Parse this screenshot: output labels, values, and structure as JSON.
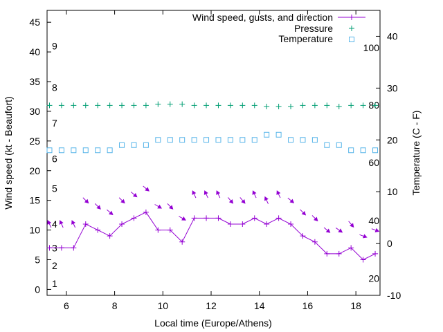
{
  "chart_data": {
    "type": "line",
    "xlabel": "Local time (Europe/Athens)",
    "ylabel": "Wind speed (kt - Beaufort)",
    "y2label": "Temperature (C - F)",
    "xlim": [
      5.2,
      19.0
    ],
    "ylim": [
      -1,
      47
    ],
    "y2lim": [
      -10,
      45
    ],
    "x_ticks": [
      6,
      8,
      10,
      12,
      14,
      16,
      18
    ],
    "y_ticks": [
      0,
      5,
      10,
      15,
      20,
      25,
      30,
      35,
      40,
      45
    ],
    "y2_ticks": [
      -10,
      0,
      10,
      20,
      30,
      40
    ],
    "beaufort_labels": [
      {
        "label": "1",
        "kt": 1
      },
      {
        "label": "2",
        "kt": 4
      },
      {
        "label": "3",
        "kt": 7
      },
      {
        "label": "4",
        "kt": 11
      },
      {
        "label": "5",
        "kt": 17
      },
      {
        "label": "6",
        "kt": 22
      },
      {
        "label": "7",
        "kt": 28
      },
      {
        "label": "8",
        "kt": 34
      },
      {
        "label": "9",
        "kt": 41
      }
    ],
    "fahrenheit_labels": [
      {
        "label": "20",
        "celsius": -6.7
      },
      {
        "label": "40",
        "celsius": 4.4
      },
      {
        "label": "60",
        "celsius": 15.6
      },
      {
        "label": "80",
        "celsius": 26.7
      },
      {
        "label": "100",
        "celsius": 37.8
      }
    ],
    "x": [
      5.3,
      5.8,
      6.3,
      6.8,
      7.3,
      7.8,
      8.3,
      8.8,
      9.3,
      9.8,
      10.3,
      10.8,
      11.3,
      11.8,
      12.3,
      12.8,
      13.3,
      13.8,
      14.3,
      14.8,
      15.3,
      15.8,
      16.3,
      16.8,
      17.3,
      17.8,
      18.3,
      18.8
    ],
    "series": [
      {
        "name": "Wind speed, gusts, and direction",
        "color": "#9400d3",
        "marker": "plus-line",
        "values": [
          7,
          7,
          7,
          11,
          10,
          9,
          11,
          12,
          13,
          10,
          10,
          8,
          12,
          12,
          12,
          11,
          11,
          12,
          11,
          12,
          11,
          9,
          8,
          6,
          6,
          7,
          5,
          6
        ],
        "gust_values": [
          11,
          11,
          11,
          15,
          14,
          13,
          15,
          16,
          17,
          14,
          14,
          12,
          16,
          16,
          16,
          15,
          15,
          16,
          15,
          16,
          15,
          13,
          12,
          10,
          10,
          11,
          9,
          10
        ],
        "direction_deg": [
          115,
          115,
          115,
          315,
          315,
          320,
          315,
          320,
          320,
          330,
          315,
          330,
          115,
          115,
          115,
          310,
          310,
          115,
          115,
          115,
          320,
          315,
          315,
          320,
          325,
          310,
          340,
          340
        ]
      },
      {
        "name": "Pressure",
        "color": "#009e73",
        "marker": "plus",
        "axis": "y1",
        "values": [
          31,
          31,
          31,
          31,
          31,
          31,
          31,
          31,
          31,
          31.2,
          31.2,
          31.2,
          31,
          31,
          31,
          31,
          31,
          31,
          30.8,
          30.8,
          30.8,
          31,
          31,
          31,
          30.8,
          31,
          31,
          31
        ]
      },
      {
        "name": "Temperature",
        "color": "#56b4e9",
        "marker": "square",
        "axis": "y2",
        "values": [
          18,
          18,
          18,
          18,
          18,
          18,
          19,
          19,
          19,
          20,
          20,
          20,
          20,
          20,
          20,
          20,
          20,
          20,
          21,
          21,
          20,
          20,
          20,
          19,
          19,
          18,
          18,
          18
        ]
      }
    ]
  }
}
